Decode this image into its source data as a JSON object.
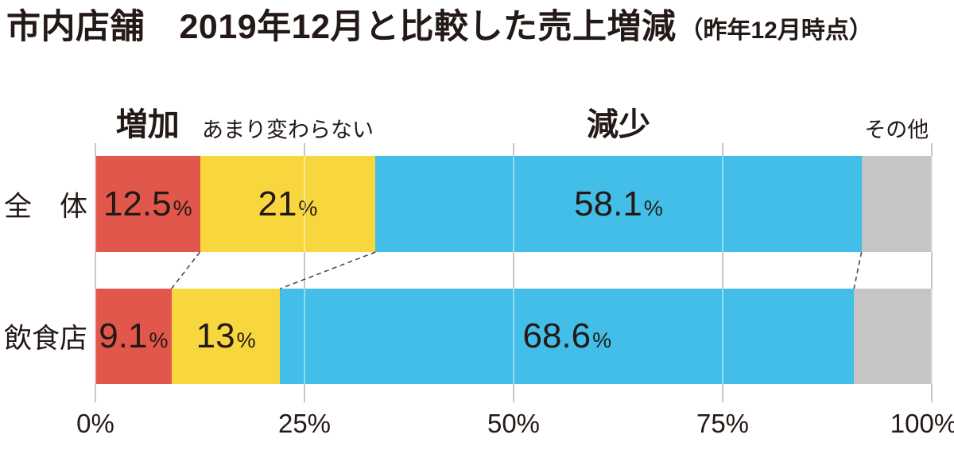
{
  "title": {
    "main": "市内店舗　2019年12月と比較した売上増減",
    "note": "（昨年12月時点）"
  },
  "chart_data": {
    "type": "bar",
    "orientation": "horizontal",
    "stacked": true,
    "title": "市内店舗 2019年12月と比較した売上増減（昨年12月時点）",
    "categories": [
      "全　体",
      "飲食店"
    ],
    "series": [
      {
        "key": "increase",
        "name": "増加",
        "color": "#E2574B",
        "values": [
          12.5,
          9.1
        ],
        "value_labels": [
          "12.5",
          "9.1"
        ],
        "header_size": "large"
      },
      {
        "key": "unchanged",
        "name": "あまり変わらない",
        "color": "#F8D73E",
        "values": [
          21,
          13
        ],
        "value_labels": [
          "21",
          "13"
        ],
        "header_size": "small"
      },
      {
        "key": "decrease",
        "name": "減少",
        "color": "#42BEE8",
        "values": [
          58.1,
          68.6
        ],
        "value_labels": [
          "58.1",
          "68.6"
        ],
        "header_size": "large"
      },
      {
        "key": "other",
        "name": "その他",
        "color": "#C5C5C5",
        "values": [
          8.4,
          9.3
        ],
        "value_labels": [
          "",
          ""
        ],
        "header_size": "small"
      }
    ],
    "percent_sign": "%",
    "x_axis": {
      "range": [
        0,
        100
      ],
      "tick_values": [
        0,
        25,
        50,
        75,
        100
      ],
      "tick_labels": [
        "0%",
        "25%",
        "50%",
        "75%",
        "100%"
      ]
    },
    "gridlines": true,
    "legend_position": "above-bars"
  },
  "colors": {
    "text": "#231916",
    "gridline": "#C8C8C8",
    "connector": "#4A4A4A",
    "background": "#FFFFFF"
  }
}
